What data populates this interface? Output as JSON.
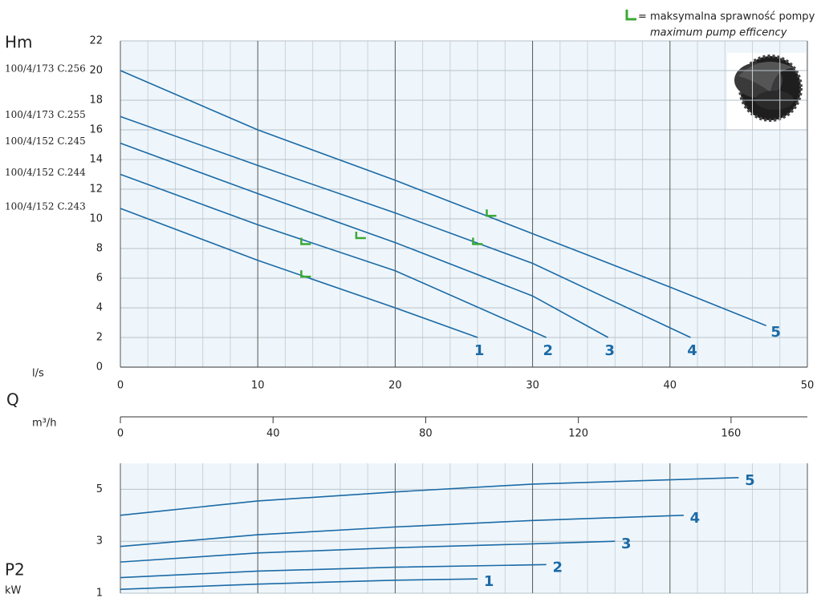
{
  "chart_data": [
    {
      "type": "line",
      "ylabel": "Hm",
      "xlabel": "l/s",
      "quantity_label": "Q",
      "x2label": "m³/h",
      "xlim": [
        0,
        50
      ],
      "xticks": [
        0,
        10,
        20,
        30,
        40,
        50
      ],
      "x_minor_ticks": [
        2,
        4,
        6,
        8,
        12,
        14,
        16,
        18,
        22,
        24,
        26,
        28,
        32,
        34,
        36,
        38,
        42,
        44,
        46,
        48
      ],
      "x2lim": [
        0,
        180
      ],
      "x2ticks": [
        0,
        40,
        80,
        120,
        160
      ],
      "ylim": [
        0,
        22
      ],
      "yticks": [
        0,
        2,
        4,
        6,
        8,
        10,
        12,
        14,
        16,
        18,
        20,
        22
      ],
      "grid": true,
      "series": [
        {
          "name": "1",
          "model": "100/4/152 C.243",
          "color": "#1b6aa6",
          "x": [
            0,
            10,
            20,
            26
          ],
          "values": [
            10.7,
            7.2,
            4.0,
            2
          ]
        },
        {
          "name": "2",
          "model": "100/4/152 C.244",
          "color": "#1b6aa6",
          "x": [
            0,
            10,
            20,
            31
          ],
          "values": [
            13,
            9.6,
            6.5,
            2
          ]
        },
        {
          "name": "3",
          "model": "100/4/152 C.245",
          "color": "#1b6aa6",
          "x": [
            0,
            10,
            20,
            30,
            35.5
          ],
          "values": [
            15.1,
            11.7,
            8.4,
            4.8,
            2
          ]
        },
        {
          "name": "4",
          "model": "100/4/173 C.255",
          "color": "#1b6aa6",
          "x": [
            0,
            10,
            20,
            30,
            41.5
          ],
          "values": [
            16.9,
            13.6,
            10.4,
            7.0,
            2
          ]
        },
        {
          "name": "5",
          "model": "100/4/173 C.256",
          "color": "#1b6aa6",
          "x": [
            0,
            10,
            20,
            30,
            40,
            47
          ],
          "values": [
            20,
            16.0,
            12.6,
            9.0,
            5.4,
            2.8
          ]
        }
      ],
      "efficiency_points": {
        "color": "#3aa935",
        "label": "= maksymalna sprawność pompy",
        "label_en": "maximum pump efficency",
        "x": [
          13.4,
          13.4,
          17.4,
          25.9,
          26.9
        ],
        "values": [
          6.1,
          8.3,
          8.7,
          8.3,
          10.2
        ]
      }
    },
    {
      "type": "line",
      "ylabel": "P2",
      "unit_label": "kW",
      "xlim": [
        0,
        50
      ],
      "xticks": [
        0,
        10,
        20,
        30,
        40,
        50
      ],
      "x_minor_ticks": [
        2,
        4,
        6,
        8,
        12,
        14,
        16,
        18,
        22,
        24,
        26,
        28,
        32,
        34,
        36,
        38,
        42,
        44,
        46,
        48
      ],
      "ylim": [
        1,
        6
      ],
      "yticks": [
        1,
        3,
        5
      ],
      "grid": true,
      "series": [
        {
          "name": "1",
          "color": "#1b6aa6",
          "x": [
            0,
            10,
            20,
            26
          ],
          "values": [
            1.15,
            1.35,
            1.5,
            1.55
          ]
        },
        {
          "name": "2",
          "color": "#1b6aa6",
          "x": [
            0,
            10,
            20,
            31
          ],
          "values": [
            1.6,
            1.85,
            2.0,
            2.1
          ]
        },
        {
          "name": "3",
          "color": "#1b6aa6",
          "x": [
            0,
            10,
            20,
            30,
            36
          ],
          "values": [
            2.2,
            2.55,
            2.75,
            2.9,
            3.0
          ]
        },
        {
          "name": "4",
          "color": "#1b6aa6",
          "x": [
            0,
            10,
            20,
            30,
            41
          ],
          "values": [
            2.8,
            3.25,
            3.55,
            3.8,
            4.0
          ]
        },
        {
          "name": "5",
          "color": "#1b6aa6",
          "x": [
            0,
            10,
            20,
            30,
            45
          ],
          "values": [
            4.0,
            4.55,
            4.9,
            5.2,
            5.45
          ]
        }
      ]
    }
  ]
}
